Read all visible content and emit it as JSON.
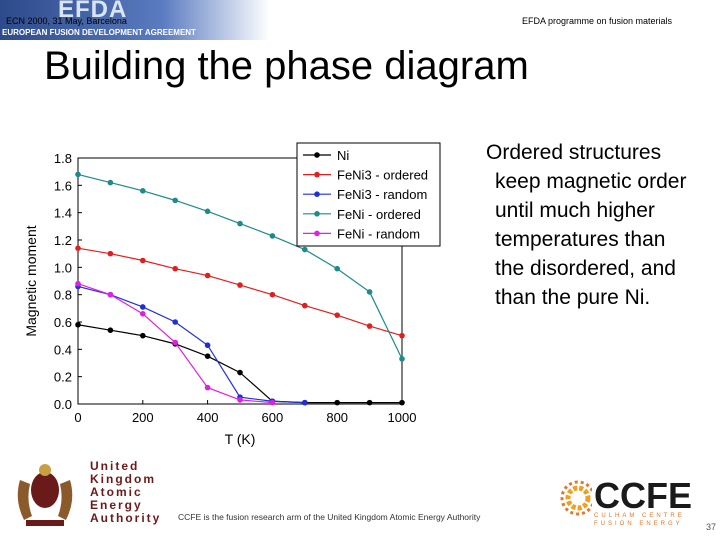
{
  "banner": {
    "title": "EFDA",
    "subtitle": "EUROPEAN FUSION DEVELOPMENT AGREEMENT"
  },
  "header": {
    "left": "ECN 2000, 31 May, Barcelona",
    "right": "EFDA programme on fusion materials"
  },
  "slide": {
    "title": "Building the phase diagram",
    "side_lines": [
      "Ordered structures",
      "keep magnetic order",
      "until much higher",
      "temperatures than",
      "the disordered, and",
      "than the pure Ni."
    ]
  },
  "footer": {
    "ukaea_lines": [
      "United",
      "Kingdom",
      "Atomic",
      "Energy",
      "Authority"
    ],
    "ccfe_note": "CCFE is the fusion research arm of the United Kingdom Atomic Energy Authority",
    "ccfe_name": "CCFE",
    "ccfe_sub_lines": [
      "CULHAM CENTRE",
      "FUSION ENERGY"
    ],
    "page": "37"
  },
  "chart_data": {
    "type": "line",
    "xlabel": "T (K)",
    "ylabel": "Magnetic moment",
    "xlim": [
      0,
      1000
    ],
    "ylim": [
      0,
      1.8
    ],
    "xticks": [
      "0",
      "200",
      "400",
      "600",
      "800",
      "1000"
    ],
    "yticks": [
      "0.0",
      "0.2",
      "0.4",
      "0.6",
      "0.8",
      "1.0",
      "1.2",
      "1.4",
      "1.6",
      "1.8"
    ],
    "legend_position": "top-right",
    "series": [
      {
        "name": "Ni",
        "color": "#000000",
        "points": [
          [
            0,
            0.58
          ],
          [
            100,
            0.54
          ],
          [
            200,
            0.5
          ],
          [
            300,
            0.44
          ],
          [
            400,
            0.35
          ],
          [
            500,
            0.23
          ],
          [
            600,
            0.02
          ],
          [
            700,
            0.01
          ],
          [
            800,
            0.01
          ],
          [
            900,
            0.01
          ],
          [
            1000,
            0.01
          ]
        ]
      },
      {
        "name": "FeNi3 - ordered",
        "color": "#e02020",
        "points": [
          [
            0,
            1.14
          ],
          [
            100,
            1.1
          ],
          [
            200,
            1.05
          ],
          [
            300,
            0.99
          ],
          [
            400,
            0.94
          ],
          [
            500,
            0.87
          ],
          [
            600,
            0.8
          ],
          [
            700,
            0.72
          ],
          [
            800,
            0.65
          ],
          [
            900,
            0.57
          ],
          [
            1000,
            0.5
          ]
        ]
      },
      {
        "name": "FeNi3 - random",
        "color": "#1f2fd6",
        "points": [
          [
            0,
            0.86
          ],
          [
            100,
            0.8
          ],
          [
            200,
            0.71
          ],
          [
            300,
            0.6
          ],
          [
            400,
            0.43
          ],
          [
            500,
            0.05
          ],
          [
            600,
            0.02
          ],
          [
            700,
            0.01
          ]
        ]
      },
      {
        "name": "FeNi - ordered",
        "color": "#1e8a8a",
        "points": [
          [
            0,
            1.68
          ],
          [
            100,
            1.62
          ],
          [
            200,
            1.56
          ],
          [
            300,
            1.49
          ],
          [
            400,
            1.41
          ],
          [
            500,
            1.32
          ],
          [
            600,
            1.23
          ],
          [
            700,
            1.13
          ],
          [
            800,
            0.99
          ],
          [
            900,
            0.82
          ],
          [
            1000,
            0.33
          ]
        ]
      },
      {
        "name": "FeNi - random",
        "color": "#e020e0",
        "points": [
          [
            0,
            0.88
          ],
          [
            100,
            0.8
          ],
          [
            200,
            0.66
          ],
          [
            300,
            0.45
          ],
          [
            400,
            0.12
          ],
          [
            500,
            0.03
          ],
          [
            600,
            0.01
          ]
        ]
      }
    ]
  }
}
